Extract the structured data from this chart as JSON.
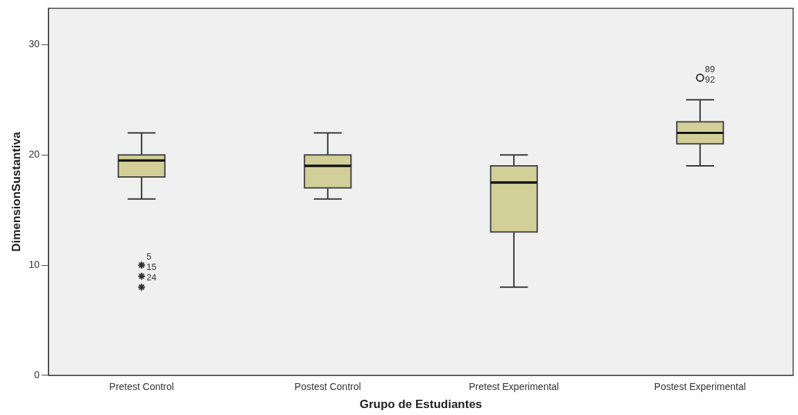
{
  "chart_data": {
    "type": "box",
    "xlabel": "Grupo de Estudiantes",
    "ylabel": "DimensionSustantiva",
    "categories": [
      "Pretest Control",
      "Postest Control",
      "Pretest Experimental",
      "Postest Experimental"
    ],
    "boxes": [
      {
        "low": 16,
        "q1": 18,
        "median": 19.5,
        "q3": 20,
        "high": 22
      },
      {
        "low": 16,
        "q1": 17,
        "median": 19,
        "q3": 20,
        "high": 22
      },
      {
        "low": 8,
        "q1": 13,
        "median": 17.5,
        "q3": 19,
        "high": 20
      },
      {
        "low": 19,
        "q1": 21,
        "median": 22,
        "q3": 23,
        "high": 25
      }
    ],
    "color": "#d3cf98",
    "series": [
      {
        "type": "scatter",
        "color": "#333333",
        "x": [
          "Pretest Control",
          "Pretest Control",
          "Pretest Control",
          "Postest Experimental"
        ],
        "values": [
          10,
          9,
          8,
          27
        ]
      }
    ],
    "ylim": [
      0,
      33.3
    ],
    "yticks": [
      0,
      10,
      20,
      30
    ],
    "annotations": [
      {
        "text": "5",
        "x": "Pretest Control",
        "y": 10
      },
      {
        "text": "15",
        "x": "Pretest Control",
        "y": 10
      },
      {
        "text": "24",
        "x": "Pretest Control",
        "y": 9
      },
      {
        "text": "89",
        "x": "Postest Experimental",
        "y": 27
      },
      {
        "text": "92",
        "x": "Postest Experimental",
        "y": 27
      }
    ],
    "grid": false,
    "legend": false
  }
}
